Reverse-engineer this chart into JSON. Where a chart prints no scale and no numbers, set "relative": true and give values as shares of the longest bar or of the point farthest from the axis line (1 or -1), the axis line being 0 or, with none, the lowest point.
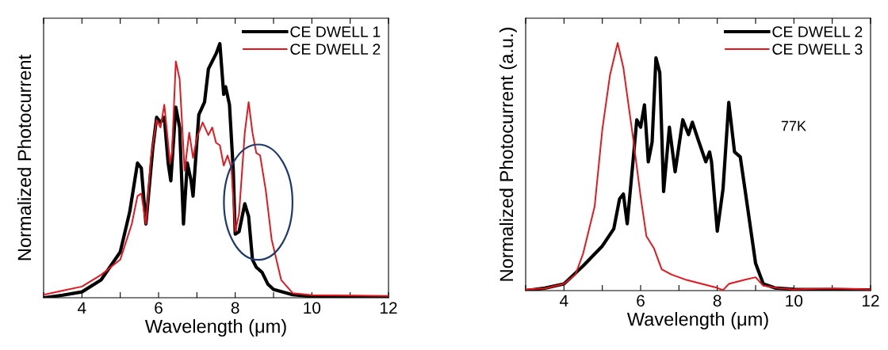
{
  "chart_data": [
    {
      "type": "line",
      "relative": true,
      "xlabel": "Wavelength (μm)",
      "ylabel": "Normalized Photocurrent",
      "xlim": [
        3,
        12
      ],
      "xticks": [
        {
          "value": 3,
          "label": null
        },
        4,
        {
          "value": 5,
          "label": null
        },
        6,
        {
          "value": 7,
          "label": null
        },
        8,
        {
          "value": 9,
          "label": null
        },
        10,
        {
          "value": 11,
          "label": null
        },
        12
      ],
      "legend": "top right",
      "grid": false,
      "series": [
        {
          "name": "CE DWELL 1",
          "color": "#000000",
          "x": [
            3.0,
            3.5,
            4.0,
            4.5,
            5.0,
            5.25,
            5.45,
            5.55,
            5.67,
            5.85,
            5.95,
            6.05,
            6.15,
            6.25,
            6.32,
            6.45,
            6.55,
            6.65,
            6.75,
            6.85,
            6.9,
            7.05,
            7.2,
            7.3,
            7.4,
            7.5,
            7.6,
            7.7,
            7.75,
            7.85,
            7.95,
            8.0,
            8.1,
            8.25,
            8.35,
            8.45,
            8.55,
            8.7,
            8.85,
            9.0,
            9.5,
            10.0,
            12.0
          ],
          "values": [
            0.0,
            0.01,
            0.023,
            0.07,
            0.18,
            0.34,
            0.53,
            0.51,
            0.29,
            0.59,
            0.71,
            0.69,
            0.71,
            0.53,
            0.46,
            0.75,
            0.67,
            0.29,
            0.53,
            0.46,
            0.4,
            0.72,
            0.77,
            0.9,
            0.93,
            0.96,
            1.0,
            0.8,
            0.83,
            0.76,
            0.5,
            0.25,
            0.26,
            0.37,
            0.32,
            0.15,
            0.12,
            0.1,
            0.054,
            0.033,
            0.012,
            0.005,
            0.002
          ]
        },
        {
          "name": "CE DWELL 2",
          "color": "#e8141b",
          "x": [
            3.0,
            3.5,
            4.0,
            4.5,
            5.0,
            5.3,
            5.45,
            5.55,
            5.67,
            5.8,
            5.95,
            6.05,
            6.15,
            6.3,
            6.35,
            6.45,
            6.55,
            6.68,
            6.8,
            6.9,
            7.0,
            7.15,
            7.3,
            7.4,
            7.5,
            7.6,
            7.7,
            7.8,
            7.9,
            8.0,
            8.1,
            8.25,
            8.35,
            8.45,
            8.55,
            8.65,
            8.8,
            8.95,
            9.2,
            9.5,
            10.0,
            12.0
          ],
          "values": [
            0.012,
            0.028,
            0.044,
            0.09,
            0.15,
            0.29,
            0.4,
            0.41,
            0.29,
            0.55,
            0.7,
            0.67,
            0.76,
            0.53,
            0.57,
            0.93,
            0.86,
            0.5,
            0.65,
            0.55,
            0.63,
            0.69,
            0.64,
            0.67,
            0.61,
            0.6,
            0.52,
            0.56,
            0.51,
            0.26,
            0.33,
            0.65,
            0.77,
            0.65,
            0.57,
            0.56,
            0.42,
            0.23,
            0.07,
            0.018,
            0.01,
            0.007
          ]
        }
      ]
    },
    {
      "type": "line",
      "relative": true,
      "xlabel": "Wavelength (μm)",
      "ylabel": "Normalized Photocurrent (a.u.)",
      "xlim": [
        3,
        12
      ],
      "xticks": [
        {
          "value": 3,
          "label": null
        },
        4,
        {
          "value": 5,
          "label": null
        },
        6,
        {
          "value": 7,
          "label": null
        },
        8,
        {
          "value": 9,
          "label": null
        },
        10,
        {
          "value": 11,
          "label": null
        },
        12
      ],
      "legend": "top right",
      "grid": false,
      "annotations": [
        "77K"
      ],
      "series": [
        {
          "name": "CE DWELL 2",
          "color": "#000000",
          "x": [
            3.0,
            3.5,
            4.0,
            4.5,
            5.0,
            5.3,
            5.45,
            5.55,
            5.65,
            5.8,
            5.9,
            6.0,
            6.1,
            6.2,
            6.3,
            6.4,
            6.5,
            6.6,
            6.75,
            6.9,
            7.1,
            7.25,
            7.35,
            7.5,
            7.7,
            7.8,
            7.85,
            8.0,
            8.15,
            8.3,
            8.45,
            8.6,
            8.75,
            9.0,
            9.2,
            9.5,
            10.0,
            12.0
          ],
          "values": [
            0.0,
            0.01,
            0.027,
            0.1,
            0.18,
            0.25,
            0.37,
            0.39,
            0.27,
            0.52,
            0.69,
            0.66,
            0.75,
            0.52,
            0.6,
            0.94,
            0.88,
            0.4,
            0.66,
            0.48,
            0.69,
            0.63,
            0.68,
            0.61,
            0.52,
            0.56,
            0.52,
            0.24,
            0.41,
            0.76,
            0.56,
            0.54,
            0.38,
            0.11,
            0.027,
            0.011,
            0.005,
            0.003
          ]
        },
        {
          "name": "CE DWELL 3",
          "color": "#e8141b",
          "x": [
            3.0,
            3.5,
            4.0,
            4.3,
            4.5,
            4.8,
            5.0,
            5.2,
            5.4,
            5.55,
            5.8,
            6.0,
            6.15,
            6.35,
            6.55,
            6.8,
            7.2,
            7.6,
            8.0,
            8.15,
            8.3,
            8.7,
            9.0,
            9.2,
            9.6,
            10.0,
            11.0,
            12.0
          ],
          "values": [
            0.005,
            0.009,
            0.027,
            0.065,
            0.15,
            0.34,
            0.65,
            0.87,
            1.0,
            0.9,
            0.62,
            0.38,
            0.22,
            0.17,
            0.086,
            0.065,
            0.043,
            0.027,
            0.011,
            0.002,
            0.027,
            0.043,
            0.054,
            0.02,
            0.01,
            0.005,
            0.009,
            0.005
          ]
        }
      ]
    }
  ]
}
